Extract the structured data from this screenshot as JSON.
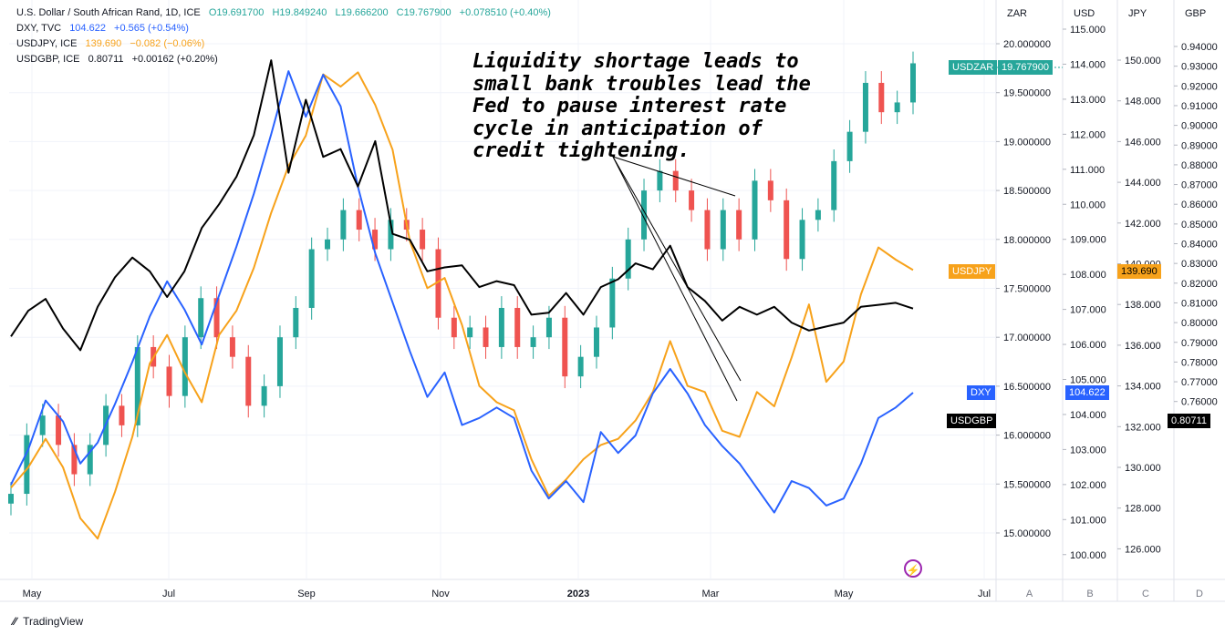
{
  "legend": [
    {
      "symbol": "U.S. Dollar / South African Rand, 1D, ICE",
      "o": "O19.691700",
      "h": "H19.849240",
      "l": "L19.666200",
      "c": "C19.767900",
      "chg": "+0.078510 (+0.40%)",
      "color": "#26a69a"
    },
    {
      "symbol": "DXY, TVC",
      "last": "104.622",
      "chg": "+0.565 (+0.54%)",
      "color": "#2962ff"
    },
    {
      "symbol": "USDJPY, ICE",
      "last": "139.690",
      "chg": "−0.082 (−0.06%)",
      "color": "#f7a21b"
    },
    {
      "symbol": "USDGBP, ICE",
      "last": "0.80711",
      "chg": "+0.00162 (+0.20%)",
      "color": "#131722"
    }
  ],
  "annotation": "Liquidity shortage leads to small bank troubles lead the Fed to pause interest rate cycle in anticipation of credit tightening.",
  "badges": {
    "usdzar_name": "USDZAR",
    "usdzar_value": "19.767900",
    "usdjpy_name": "USDJPY",
    "usdjpy_value": "139.690",
    "dxy_name": "DXY",
    "dxy_value": "104.622",
    "usdgbp_name": "USDGBP",
    "usdgbp_value": "0.80711"
  },
  "colors": {
    "zar_up": "#26a69a",
    "zar_down": "#ef5350",
    "dxy": "#2962ff",
    "jpy": "#f7a21b",
    "gbp": "#000000"
  },
  "brand": "TradingView",
  "chart_data": {
    "type": "line",
    "x_ticks": [
      "May",
      "Jul",
      "Sep",
      "Nov",
      "2023",
      "Mar",
      "May",
      "Jul"
    ],
    "axes": [
      {
        "id": "A",
        "label": "ZAR",
        "ticks": [
          15.0,
          15.5,
          16.0,
          16.5,
          17.0,
          17.5,
          18.0,
          18.5,
          19.0,
          19.5,
          20.0
        ],
        "tick_labels": [
          "15.000000",
          "15.500000",
          "16.000000",
          "16.500000",
          "17.000000",
          "17.500000",
          "18.000000",
          "18.500000",
          "19.000000",
          "19.500000",
          "20.000000"
        ]
      },
      {
        "id": "B",
        "label": "USD",
        "ticks": [
          100,
          101,
          102,
          103,
          104,
          105,
          106,
          107,
          108,
          109,
          110,
          111,
          112,
          113,
          114,
          115
        ],
        "tick_labels": [
          "100.000",
          "101.000",
          "102.000",
          "103.000",
          "104.000",
          "105.000",
          "106.000",
          "107.000",
          "108.000",
          "109.000",
          "110.000",
          "111.000",
          "112.000",
          "113.000",
          "114.000",
          "115.000"
        ]
      },
      {
        "id": "C",
        "label": "JPY",
        "ticks": [
          126,
          128,
          130,
          132,
          134,
          136,
          138,
          140,
          142,
          144,
          146,
          148,
          150
        ],
        "tick_labels": [
          "126.000",
          "128.000",
          "130.000",
          "132.000",
          "134.000",
          "136.000",
          "138.000",
          "140.000",
          "142.000",
          "144.000",
          "146.000",
          "148.000",
          "150.000"
        ]
      },
      {
        "id": "D",
        "label": "GBP",
        "ticks": [
          0.76,
          0.77,
          0.78,
          0.79,
          0.8,
          0.81,
          0.82,
          0.83,
          0.84,
          0.85,
          0.86,
          0.87,
          0.88,
          0.89,
          0.9,
          0.91,
          0.92,
          0.93,
          0.94
        ],
        "tick_labels": [
          "0.76000",
          "0.77000",
          "0.78000",
          "0.79000",
          "0.80000",
          "0.81000",
          "0.82000",
          "0.83000",
          "0.84000",
          "0.85000",
          "0.86000",
          "0.87000",
          "0.88000",
          "0.89000",
          "0.90000",
          "0.91000",
          "0.92000",
          "0.93000",
          "0.94000"
        ]
      }
    ],
    "series": [
      {
        "name": "USDZAR",
        "type": "candlestick",
        "axis": "A",
        "close": [
          15.4,
          16.0,
          16.2,
          15.9,
          15.6,
          15.9,
          16.3,
          16.1,
          16.9,
          16.7,
          16.4,
          17.0,
          17.4,
          17.0,
          16.8,
          16.3,
          16.5,
          17.0,
          17.3,
          17.9,
          18.0,
          18.3,
          18.1,
          17.9,
          18.2,
          18.1,
          17.9,
          17.2,
          17.0,
          17.1,
          16.9,
          17.3,
          16.9,
          17.0,
          17.2,
          16.6,
          16.8,
          17.1,
          17.6,
          18.0,
          18.5,
          18.7,
          18.5,
          18.3,
          17.9,
          18.3,
          18.0,
          18.6,
          18.4,
          17.8,
          18.2,
          18.3,
          18.8,
          19.1,
          19.6,
          19.3,
          19.4,
          19.8
        ],
        "last": 19.7679
      },
      {
        "name": "DXY",
        "axis": "B",
        "values": [
          102.0,
          103.0,
          104.4,
          103.8,
          102.6,
          103.2,
          104.3,
          105.5,
          106.8,
          107.8,
          107.0,
          106.0,
          107.4,
          108.8,
          110.3,
          112.0,
          113.8,
          112.5,
          113.7,
          112.8,
          110.5,
          108.6,
          107.2,
          105.8,
          104.5,
          105.2,
          103.7,
          103.9,
          104.2,
          103.9,
          102.4,
          101.6,
          102.1,
          101.5,
          103.5,
          102.9,
          103.4,
          104.6,
          105.3,
          104.6,
          103.7,
          103.1,
          102.6,
          101.9,
          101.2,
          102.1,
          101.9,
          101.4,
          101.6,
          102.6,
          103.9,
          104.2,
          104.622
        ],
        "last": 104.622
      },
      {
        "name": "USDJPY",
        "axis": "C",
        "values": [
          129,
          130,
          131.4,
          130.0,
          127.5,
          126.5,
          128.8,
          131.5,
          135.1,
          136.5,
          134.7,
          133.2,
          136.5,
          137.7,
          139.8,
          142.5,
          144.8,
          146.3,
          149.3,
          148.7,
          149.4,
          147.8,
          145.6,
          141.1,
          138.8,
          139.3,
          137.0,
          134.0,
          133.2,
          132.8,
          130.4,
          128.6,
          129.4,
          130.4,
          131.1,
          131.4,
          132.3,
          133.7,
          136.2,
          134.0,
          133.7,
          131.8,
          131.5,
          133.7,
          133.0,
          135.4,
          138.0,
          134.2,
          135.2,
          138.5,
          140.8,
          140.2,
          139.69
        ],
        "last": 139.69
      },
      {
        "name": "USDGBP",
        "axis": "D",
        "values": [
          0.793,
          0.806,
          0.812,
          0.797,
          0.786,
          0.808,
          0.823,
          0.833,
          0.826,
          0.813,
          0.826,
          0.848,
          0.86,
          0.874,
          0.895,
          0.933,
          0.876,
          0.913,
          0.884,
          0.888,
          0.869,
          0.892,
          0.845,
          0.842,
          0.826,
          0.828,
          0.829,
          0.818,
          0.821,
          0.819,
          0.804,
          0.805,
          0.815,
          0.804,
          0.818,
          0.822,
          0.83,
          0.827,
          0.839,
          0.818,
          0.811,
          0.801,
          0.808,
          0.804,
          0.808,
          0.8,
          0.796,
          0.798,
          0.8,
          0.808,
          0.809,
          0.81,
          0.80711
        ],
        "last": 0.80711
      }
    ]
  }
}
